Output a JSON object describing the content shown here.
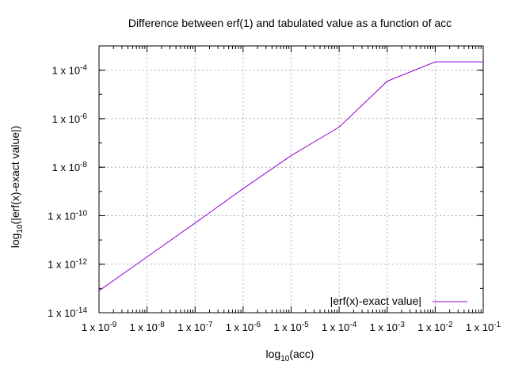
{
  "chart_data": {
    "type": "line",
    "title": "Difference between erf(1) and tabulated value as a function of acc",
    "xlabel": {
      "prefix": "log",
      "sub": "10",
      "suffix": "(acc)"
    },
    "ylabel": {
      "prefix": "log",
      "sub": "10",
      "suffix": "(|erf(x)-exact value|)"
    },
    "x_scale": "log",
    "y_scale": "log",
    "xlim": [
      1e-09,
      0.1
    ],
    "ylim": [
      1e-14,
      0.001
    ],
    "grid": true,
    "legend_position": "bottom-right",
    "x_ticks": [
      {
        "value": 1e-09,
        "base": "1 x 10",
        "exp": "-9"
      },
      {
        "value": 1e-08,
        "base": "1 x 10",
        "exp": "-8"
      },
      {
        "value": 1e-07,
        "base": "1 x 10",
        "exp": "-7"
      },
      {
        "value": 1e-06,
        "base": "1 x 10",
        "exp": "-6"
      },
      {
        "value": 1e-05,
        "base": "1 x 10",
        "exp": "-5"
      },
      {
        "value": 0.0001,
        "base": "1 x 10",
        "exp": "-4"
      },
      {
        "value": 0.001,
        "base": "1 x 10",
        "exp": "-3"
      },
      {
        "value": 0.01,
        "base": "1 x 10",
        "exp": "-2"
      },
      {
        "value": 0.1,
        "base": "1 x 10",
        "exp": "-1"
      }
    ],
    "y_ticks": [
      {
        "value": 1e-14,
        "base": "1 x 10",
        "exp": "-14"
      },
      {
        "value": 1e-12,
        "base": "1 x 10",
        "exp": "-12"
      },
      {
        "value": 1e-10,
        "base": "1 x 10",
        "exp": "-10"
      },
      {
        "value": 1e-08,
        "base": "1 x 10",
        "exp": "-8"
      },
      {
        "value": 1e-06,
        "base": "1 x 10",
        "exp": "-6"
      },
      {
        "value": 0.0001,
        "base": "1 x 10",
        "exp": "-4"
      }
    ],
    "series": [
      {
        "name": "|erf(x)-exact value|",
        "color": "#9400d3",
        "points": [
          {
            "x": 1e-09,
            "y": 8e-14
          },
          {
            "x": 1e-08,
            "y": 2e-12
          },
          {
            "x": 1e-07,
            "y": 5e-11
          },
          {
            "x": 1e-06,
            "y": 1.3e-09
          },
          {
            "x": 1e-05,
            "y": 3e-08
          },
          {
            "x": 0.0001,
            "y": 4.5e-07
          },
          {
            "x": 0.001,
            "y": 3.5e-05
          },
          {
            "x": 0.01,
            "y": 0.00022
          },
          {
            "x": 0.1,
            "y": 0.00022
          }
        ]
      }
    ]
  }
}
